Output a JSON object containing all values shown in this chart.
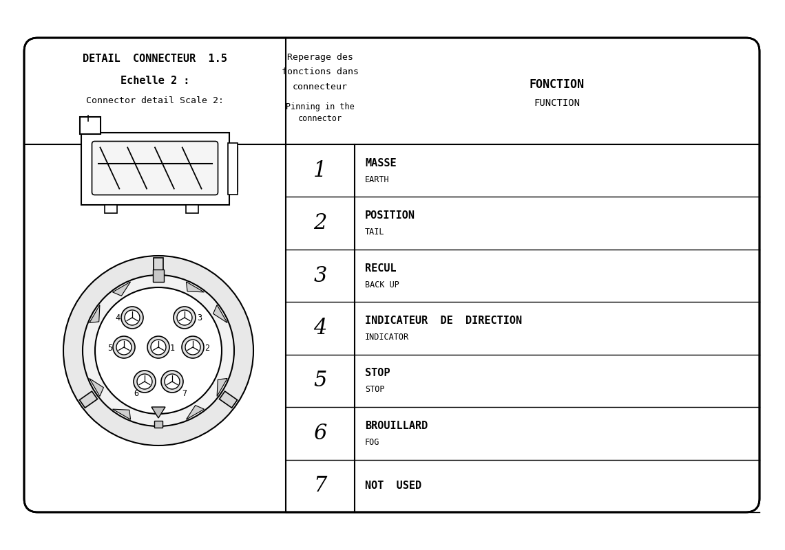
{
  "title_line1": "DETAIL  CONNECTEUR  1.5",
  "title_line2": "Echelle 2 :",
  "title_line3": "Connector detail Scale 2:",
  "header_col2_line1": "Reperage des",
  "header_col2_line2": "fonctions dans",
  "header_col2_line3": "connecteur",
  "header_col2_line4": "Pinning in the",
  "header_col2_line5": "connector",
  "header_col3_line1": "FONCTION",
  "header_col3_line2": "FUNCTION",
  "rows": [
    {
      "pin": "1",
      "func_fr": "MASSE",
      "func_en": "EARTH"
    },
    {
      "pin": "2",
      "func_fr": "POSITION",
      "func_en": "TAIL"
    },
    {
      "pin": "3",
      "func_fr": "RECUL",
      "func_en": "BACK UP"
    },
    {
      "pin": "4",
      "func_fr": "INDICATEUR  DE  DIRECTION",
      "func_en": "INDICATOR"
    },
    {
      "pin": "5",
      "func_fr": "STOP",
      "func_en": "STOP"
    },
    {
      "pin": "6",
      "func_fr": "BROUILLARD",
      "func_en": "FOG"
    },
    {
      "pin": "7",
      "func_fr": "NOT  USED",
      "func_en": ""
    }
  ],
  "bg_color": "#ffffff",
  "line_color": "#000000",
  "text_color": "#000000"
}
